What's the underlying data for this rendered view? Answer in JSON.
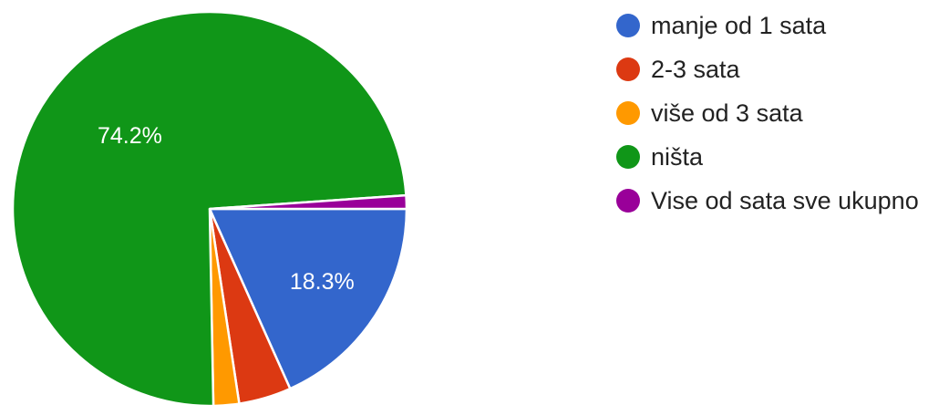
{
  "chart_data": {
    "type": "pie",
    "legend_position": "right",
    "slices": [
      {
        "label": "manje od 1 sata",
        "value": 18.3,
        "value_label": "18.3%",
        "color": "#3366cc"
      },
      {
        "label": "2-3 sata",
        "value": 4.3,
        "value_label": "",
        "color": "#dc3912"
      },
      {
        "label": "više od 3 sata",
        "value": 2.1,
        "value_label": "",
        "color": "#ff9900"
      },
      {
        "label": "ništa",
        "value": 74.2,
        "value_label": "74.2%",
        "color": "#109618"
      },
      {
        "label": "Vise od sata sve ukupno",
        "value": 1.1,
        "value_label": "",
        "color": "#990099"
      }
    ]
  }
}
